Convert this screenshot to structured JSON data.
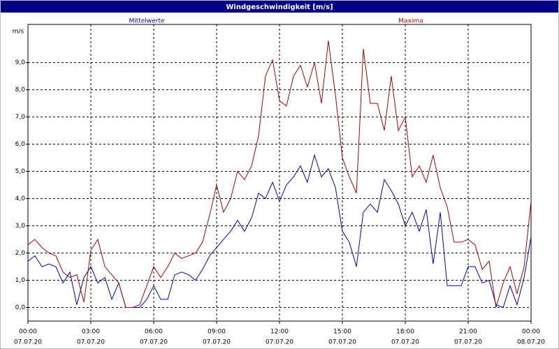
{
  "chart_data": {
    "type": "line",
    "title": "Windgeschwindigkeit [m/s]",
    "y_label": "m/s",
    "x": [
      0,
      0.33,
      0.67,
      1,
      1.33,
      1.67,
      2,
      2.33,
      2.67,
      3,
      3.33,
      3.67,
      4,
      4.33,
      4.67,
      5,
      5.33,
      5.67,
      6,
      6.33,
      6.67,
      7,
      7.33,
      7.67,
      8,
      8.33,
      8.67,
      9,
      9.33,
      9.67,
      10,
      10.33,
      10.67,
      11,
      11.33,
      11.67,
      12,
      12.33,
      12.67,
      13,
      13.33,
      13.67,
      14,
      14.33,
      14.67,
      15,
      15.33,
      15.67,
      16,
      16.33,
      16.67,
      17,
      17.33,
      17.67,
      18,
      18.33,
      18.67,
      19,
      19.33,
      19.67,
      20,
      20.33,
      20.67,
      21,
      21.33,
      21.67,
      22,
      22.33,
      22.67,
      23,
      23.33,
      23.67,
      24
    ],
    "series": [
      {
        "name": "Mittelwerte",
        "color": "#0000c0",
        "values": [
          1.7,
          1.9,
          1.5,
          1.6,
          1.5,
          0.9,
          1.3,
          0.1,
          1.1,
          1.5,
          0.9,
          1.1,
          0.3,
          0.9,
          0.0,
          0.0,
          0.0,
          0.3,
          0.8,
          0.3,
          0.3,
          1.2,
          1.3,
          1.2,
          1.0,
          1.4,
          1.9,
          2.2,
          2.5,
          2.8,
          3.2,
          2.8,
          3.3,
          4.2,
          4.0,
          4.6,
          3.9,
          4.5,
          4.8,
          5.2,
          4.6,
          5.6,
          4.8,
          5.1,
          4.4,
          2.8,
          2.4,
          1.5,
          3.5,
          3.8,
          3.5,
          4.7,
          4.3,
          3.8,
          3.0,
          3.5,
          2.8,
          3.6,
          1.6,
          3.5,
          0.8,
          0.8,
          0.8,
          1.5,
          1.5,
          0.9,
          1.0,
          0.1,
          0.0,
          0.8,
          0.1,
          1.1,
          2.6
        ]
      },
      {
        "name": "Maxima",
        "color": "#b00000",
        "values": [
          2.3,
          2.5,
          2.2,
          2.0,
          1.9,
          1.3,
          1.1,
          1.2,
          0.2,
          2.1,
          2.5,
          1.5,
          1.2,
          0.9,
          0.0,
          0.0,
          0.1,
          0.8,
          1.5,
          1.1,
          1.5,
          2.0,
          1.8,
          1.9,
          2.0,
          2.4,
          3.4,
          4.5,
          3.5,
          4.0,
          5.0,
          4.7,
          5.2,
          6.3,
          8.5,
          9.1,
          7.6,
          7.4,
          8.5,
          8.9,
          8.1,
          9.0,
          7.5,
          9.8,
          7.8,
          5.5,
          4.8,
          4.2,
          9.5,
          7.5,
          7.5,
          6.5,
          8.5,
          6.5,
          7.0,
          4.8,
          5.2,
          4.6,
          5.6,
          4.4,
          3.7,
          2.4,
          2.4,
          2.5,
          2.3,
          1.4,
          1.7,
          0.0,
          0.9,
          1.5,
          0.5,
          1.5,
          3.9
        ]
      }
    ],
    "xlim": [
      0,
      24
    ],
    "xticks": [
      {
        "value": 0,
        "label": [
          "00:00",
          "07.07.20"
        ]
      },
      {
        "value": 3,
        "label": [
          "03:00",
          "07.07.20"
        ]
      },
      {
        "value": 6,
        "label": [
          "06:00",
          "07.07.20"
        ]
      },
      {
        "value": 9,
        "label": [
          "09:00",
          "07.07.20"
        ]
      },
      {
        "value": 12,
        "label": [
          "12:00",
          "07.07.20"
        ]
      },
      {
        "value": 15,
        "label": [
          "15:00",
          "07.07.20"
        ]
      },
      {
        "value": 18,
        "label": [
          "18:00",
          "07.07.20"
        ]
      },
      {
        "value": 21,
        "label": [
          "21:00",
          "07.07.20"
        ]
      },
      {
        "value": 24,
        "label": [
          "00:00",
          "08.07.20"
        ]
      }
    ],
    "ylim": [
      -0.5,
      10.4
    ],
    "yticks": [
      {
        "value": 0,
        "label": "0,0"
      },
      {
        "value": 1,
        "label": "1,0"
      },
      {
        "value": 2,
        "label": "2,0"
      },
      {
        "value": 3,
        "label": "3,0"
      },
      {
        "value": 4,
        "label": "4,0"
      },
      {
        "value": 5,
        "label": "5,0"
      },
      {
        "value": 6,
        "label": "6,0"
      },
      {
        "value": 7,
        "label": "7,0"
      },
      {
        "value": 8,
        "label": "8,0"
      },
      {
        "value": 9,
        "label": "9,0"
      }
    ],
    "grid": true
  }
}
